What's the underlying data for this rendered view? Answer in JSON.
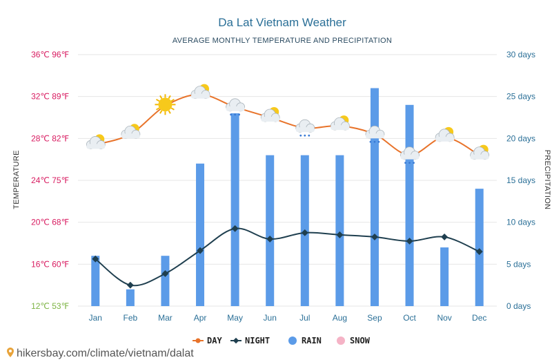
{
  "chart_data": {
    "type": "bar+line",
    "title": "Da Lat Vietnam Weather",
    "subtitle": "AVERAGE MONTHLY TEMPERATURE AND PRECIPITATION",
    "categories": [
      "Jan",
      "Feb",
      "Mar",
      "Apr",
      "May",
      "Jun",
      "Jul",
      "Aug",
      "Sep",
      "Oct",
      "Nov",
      "Dec"
    ],
    "y_left": {
      "label": "TEMPERATURE",
      "unit": "°C",
      "range": [
        12,
        36
      ],
      "ticks": [
        {
          "value": 36,
          "label": "36℃ 96℉",
          "color": "#d81b60"
        },
        {
          "value": 32,
          "label": "32℃ 89℉",
          "color": "#d81b60"
        },
        {
          "value": 28,
          "label": "28℃ 82℉",
          "color": "#d81b60"
        },
        {
          "value": 24,
          "label": "24℃ 75℉",
          "color": "#d81b60"
        },
        {
          "value": 20,
          "label": "20℃ 68℉",
          "color": "#d81b60"
        },
        {
          "value": 16,
          "label": "16℃ 60℉",
          "color": "#d81b60"
        },
        {
          "value": 12,
          "label": "12℃ 53℉",
          "color": "#7cb342"
        }
      ]
    },
    "y_right": {
      "label": "PRECIPITATION",
      "range": [
        0,
        30
      ],
      "ticks": [
        {
          "value": 30,
          "label": "30 days"
        },
        {
          "value": 25,
          "label": "25 days"
        },
        {
          "value": 20,
          "label": "20 days"
        },
        {
          "value": 15,
          "label": "15 days"
        },
        {
          "value": 10,
          "label": "10 days"
        },
        {
          "value": 5,
          "label": "5 days"
        },
        {
          "value": 0,
          "label": "0 days"
        }
      ]
    },
    "series": [
      {
        "name": "DAY",
        "type": "line",
        "color": "#e8732a",
        "axis": "left",
        "values": [
          27.4,
          28.4,
          31.1,
          32.2,
          31.0,
          30.0,
          29.0,
          29.2,
          28.4,
          26.4,
          28.1,
          26.4
        ]
      },
      {
        "name": "NIGHT",
        "type": "line",
        "color": "#1f3f4f",
        "axis": "left",
        "values": [
          16.5,
          14.0,
          15.1,
          17.3,
          19.4,
          18.4,
          19.0,
          18.8,
          18.6,
          18.2,
          18.6,
          17.2
        ]
      },
      {
        "name": "RAIN",
        "type": "bar",
        "color": "#5b9be8",
        "axis": "right",
        "values": [
          6,
          2,
          6,
          17,
          23,
          18,
          18,
          18,
          26,
          24,
          7,
          14
        ]
      },
      {
        "name": "SNOW",
        "type": "bar",
        "color": "#f5b3c6",
        "axis": "right",
        "values": [
          0,
          0,
          0,
          0,
          0,
          0,
          0,
          0,
          0,
          0,
          0,
          0
        ]
      }
    ],
    "weather_icons": [
      "partly-cloudy-icon",
      "partly-cloudy-icon",
      "sun-icon",
      "partly-cloudy-icon",
      "rain-cloud-icon",
      "partly-cloudy-icon",
      "rain-cloud-icon",
      "partly-cloudy-icon",
      "rain-cloud-icon",
      "rain-cloud-icon",
      "partly-cloudy-icon",
      "partly-cloudy-icon"
    ],
    "legend_position": "bottom-center",
    "grid": true
  },
  "source_text": "hikersbay.com/climate/vietnam/dalat"
}
